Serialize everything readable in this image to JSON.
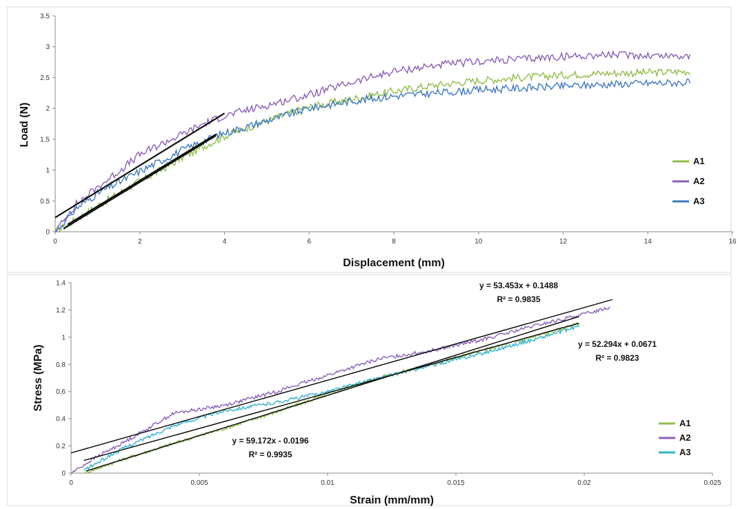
{
  "colors": {
    "A1": "#8fbd4a",
    "A2": "#8a5db8",
    "A3_top": "#3b78c2",
    "A3_bottom": "#2fb2d0",
    "trend": "#111111"
  },
  "chart_data": [
    {
      "type": "line",
      "title": "",
      "xlabel": "Displacement (mm)",
      "ylabel": "Load (N)",
      "xlim": [
        0,
        16
      ],
      "ylim": [
        0,
        3.5
      ],
      "xticks": [
        "0",
        "2",
        "4",
        "6",
        "8",
        "10",
        "12",
        "14",
        "16"
      ],
      "yticks": [
        "0",
        "0.5",
        "1",
        "1.5",
        "2",
        "2.5",
        "3",
        "3.5"
      ],
      "grid": false,
      "legend_position": "right",
      "series": [
        {
          "name": "A1",
          "color_key": "A1",
          "x": [
            0,
            0.5,
            1,
            1.5,
            2,
            2.5,
            3,
            3.5,
            4,
            5,
            6,
            7,
            8,
            9,
            10,
            11,
            12,
            13,
            14,
            15
          ],
          "y": [
            0,
            0.2,
            0.42,
            0.62,
            0.82,
            1.0,
            1.2,
            1.38,
            1.55,
            1.8,
            2.02,
            2.15,
            2.28,
            2.38,
            2.45,
            2.5,
            2.54,
            2.57,
            2.58,
            2.6
          ]
        },
        {
          "name": "A2",
          "color_key": "A2",
          "x": [
            0,
            0.5,
            1,
            1.5,
            2,
            2.5,
            3,
            3.5,
            4,
            5,
            6,
            7,
            8,
            9,
            10,
            11,
            12,
            13,
            14,
            15
          ],
          "y": [
            0,
            0.45,
            0.72,
            0.98,
            1.25,
            1.42,
            1.58,
            1.75,
            1.88,
            2.05,
            2.22,
            2.42,
            2.6,
            2.7,
            2.76,
            2.8,
            2.84,
            2.87,
            2.86,
            2.85
          ]
        },
        {
          "name": "A3",
          "color_key": "A3_top",
          "x": [
            0,
            0.5,
            1,
            1.5,
            2,
            2.5,
            3,
            3.5,
            4,
            5,
            6,
            7,
            8,
            9,
            10,
            11,
            12,
            13,
            14,
            15
          ],
          "y": [
            0,
            0.38,
            0.62,
            0.8,
            0.98,
            1.15,
            1.32,
            1.47,
            1.6,
            1.8,
            2.0,
            2.12,
            2.2,
            2.25,
            2.3,
            2.33,
            2.36,
            2.39,
            2.41,
            2.42
          ]
        }
      ],
      "trendlines": [
        {
          "x": [
            0,
            4
          ],
          "y": [
            0.23,
            1.92
          ]
        },
        {
          "x": [
            0.2,
            3.8
          ],
          "y": [
            0.05,
            1.56
          ]
        },
        {
          "x": [
            0.3,
            3.8
          ],
          "y": [
            0.12,
            1.58
          ]
        }
      ]
    },
    {
      "type": "line",
      "title": "",
      "xlabel": "Strain (mm/mm)",
      "ylabel": "Stress  (MPa)",
      "xlim": [
        0,
        0.025
      ],
      "ylim": [
        0,
        1.4
      ],
      "xticks": [
        "0",
        "0.005",
        "0.01",
        "0.015",
        "0.02",
        "0.025"
      ],
      "yticks": [
        "0",
        "0.2",
        "0.4",
        "0.6",
        "0.8",
        "1",
        "1.2",
        "1.4"
      ],
      "grid": false,
      "legend_position": "bottom-right",
      "series": [
        {
          "name": "A1",
          "color_key": "A1",
          "x": [
            0.0005,
            0.002,
            0.004,
            0.006,
            0.008,
            0.01,
            0.012,
            0.014,
            0.016,
            0.018,
            0.0198
          ],
          "y": [
            0.0,
            0.1,
            0.22,
            0.33,
            0.45,
            0.58,
            0.7,
            0.8,
            0.9,
            1.0,
            1.1
          ]
        },
        {
          "name": "A2",
          "color_key": "A2",
          "x": [
            0,
            0.001,
            0.002,
            0.004,
            0.006,
            0.008,
            0.01,
            0.012,
            0.014,
            0.016,
            0.018,
            0.02,
            0.021
          ],
          "y": [
            0.0,
            0.12,
            0.22,
            0.44,
            0.5,
            0.6,
            0.72,
            0.84,
            0.9,
            0.98,
            1.08,
            1.17,
            1.22
          ]
        },
        {
          "name": "A3",
          "color_key": "A3_bottom",
          "x": [
            0.0005,
            0.002,
            0.004,
            0.006,
            0.008,
            0.01,
            0.012,
            0.014,
            0.016,
            0.018,
            0.0198
          ],
          "y": [
            0.02,
            0.18,
            0.35,
            0.46,
            0.52,
            0.6,
            0.7,
            0.79,
            0.88,
            0.98,
            1.08
          ]
        }
      ],
      "trendlines": [
        {
          "slope": 53.453,
          "intercept": 0.1488,
          "x": [
            0,
            0.0211
          ]
        },
        {
          "slope": 52.294,
          "intercept": 0.0671,
          "x": [
            0.0005,
            0.0198
          ]
        },
        {
          "slope": 59.172,
          "intercept": -0.0196,
          "x": [
            0.0006,
            0.0198
          ]
        }
      ],
      "annotations": [
        {
          "line1": "y = 53.453x + 0.1488",
          "line2": "R² = 0.9835"
        },
        {
          "line1": "y = 52.294x + 0.0671",
          "line2": "R² = 0.9823"
        },
        {
          "line1": "y = 59.172x - 0.0196",
          "line2": "R² = 0.9935"
        }
      ]
    }
  ]
}
